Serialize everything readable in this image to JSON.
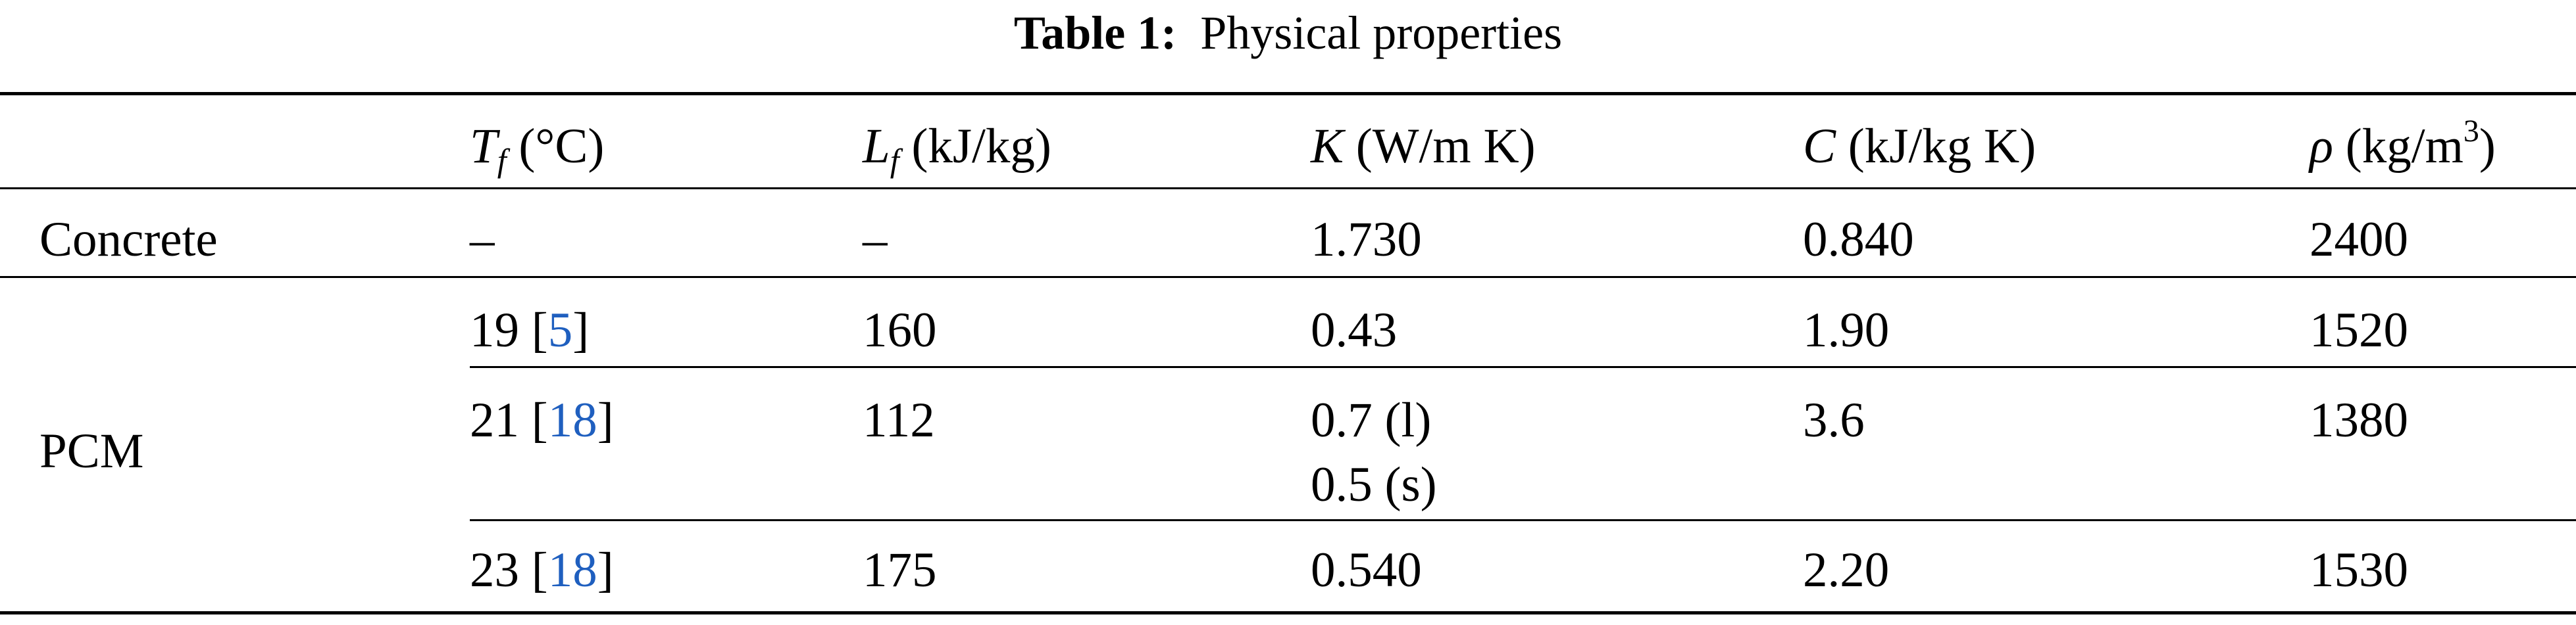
{
  "caption": {
    "label": "Table 1:",
    "title": "Physical properties"
  },
  "table": {
    "columns": [
      {
        "sym": "T",
        "sub": "f",
        "unit": " (°C)"
      },
      {
        "sym": "L",
        "sub": "f",
        "unit": " (kJ/kg)"
      },
      {
        "sym": "K",
        "unit": " (W/m K)"
      },
      {
        "sym": "C",
        "unit": " (kJ/kg K)"
      },
      {
        "sym": "ρ",
        "unit_pre": " (kg/m",
        "unit_sup": "3",
        "unit_post": ")"
      }
    ],
    "concrete": {
      "label": "Concrete",
      "tf": "–",
      "lf": "–",
      "k": "1.730",
      "c": "0.840",
      "rho": "2400"
    },
    "pcm": {
      "label": "PCM",
      "rows": [
        {
          "tf": "19",
          "ref": "5",
          "lf": "160",
          "k": "0.43",
          "c": "1.90",
          "rho": "1520"
        },
        {
          "tf": "21",
          "ref": "18",
          "lf": "112",
          "k": "0.7 (l)",
          "k2": "0.5 (s)",
          "c": "3.6",
          "rho": "1380"
        },
        {
          "tf": "23",
          "ref": "18",
          "lf": "175",
          "k": "0.540",
          "c": "2.20",
          "rho": "1530"
        }
      ]
    }
  }
}
